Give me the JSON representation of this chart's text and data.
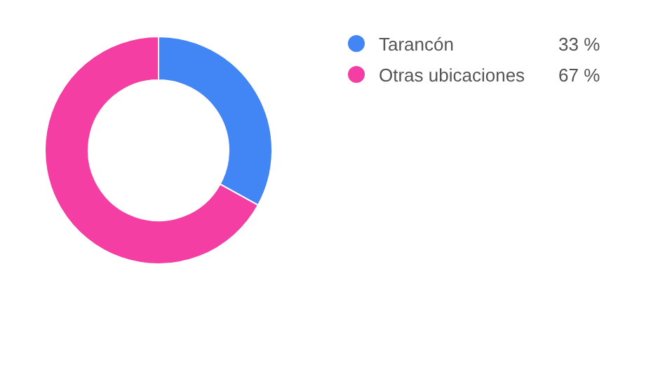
{
  "chart_data": {
    "type": "donut",
    "categories": [
      "Tarancón",
      "Otras ubicaciones"
    ],
    "values": [
      33,
      67
    ],
    "colors": [
      "#4285f4",
      "#f43ea3"
    ],
    "value_labels": [
      "33 %",
      "67 %"
    ],
    "legend": "top right"
  }
}
